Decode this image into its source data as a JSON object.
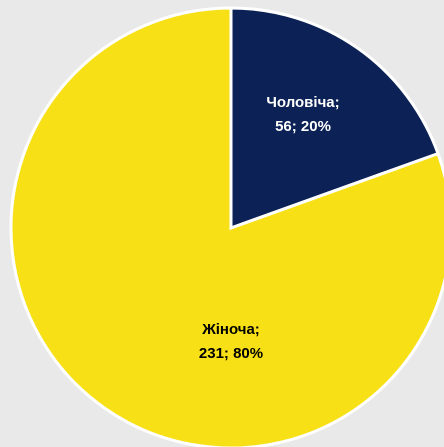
{
  "chart_data": {
    "type": "pie",
    "categories": [
      "Чоловіча;",
      "Жіноча;"
    ],
    "values": [
      56,
      231
    ],
    "value_labels": [
      "56; 20%",
      "231; 80%"
    ],
    "colors": [
      "#0c2256",
      "#f7e016"
    ]
  }
}
